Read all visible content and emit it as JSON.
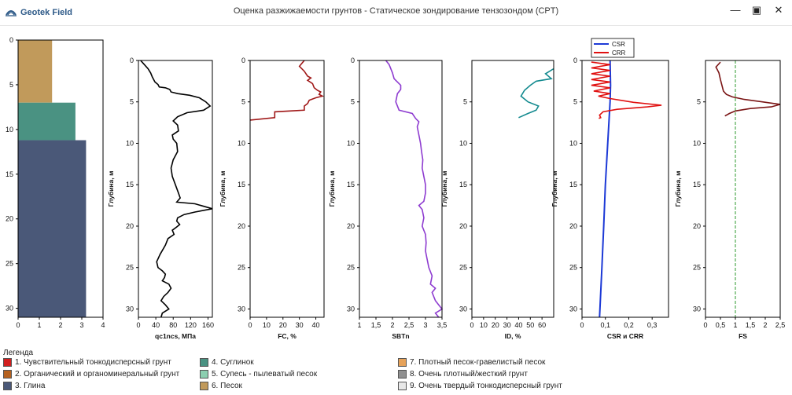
{
  "window": {
    "app_name": "Geotek Field",
    "title": "Оценка разжижаемости грунтов -  Статическое зондирование тензозондом (CPT)",
    "minimize_icon": "minimize-icon",
    "maximize_icon": "maximize-icon",
    "close_icon": "close-icon"
  },
  "colors": {
    "soil_3": "#c19a5b",
    "soil_4": "#4a9282",
    "soil_clay": "#4a5878",
    "qc": "#000000",
    "fc": "#a01818",
    "sbt": "#8e3cd0",
    "id": "#138a8f",
    "csr": "#1c39d6",
    "crr": "#e01010",
    "fs": "#7a1414",
    "fs_ref": "#2c9a2c"
  },
  "chart_data": [
    {
      "type": "bar",
      "name": "soil-column",
      "ylim": [
        0,
        31
      ],
      "xlim": [
        0,
        4
      ],
      "yticks": [
        0,
        5,
        10,
        15,
        20,
        25,
        30
      ],
      "xticks": [
        0,
        1,
        2,
        3,
        4
      ],
      "layers": [
        {
          "top": 0,
          "bottom": 7,
          "width": 1.6,
          "color": "#c19a5b"
        },
        {
          "top": 7,
          "bottom": 11.2,
          "width": 2.7,
          "color": "#4a9282"
        },
        {
          "top": 11.2,
          "bottom": 31,
          "width": 3.2,
          "color": "#4a5878"
        }
      ]
    },
    {
      "type": "line",
      "name": "qc1ncs",
      "xlabel": "qc1ncs, МПа",
      "ylabel": "Глубина, м",
      "xlim": [
        0,
        170
      ],
      "ylim": [
        0,
        31
      ],
      "xticks": [
        0,
        40,
        80,
        120,
        160
      ],
      "yticks": [
        0,
        5,
        10,
        15,
        20,
        25,
        30
      ],
      "series": [
        {
          "points": [
            [
              5,
              0
            ],
            [
              12,
              0.4
            ],
            [
              22,
              1
            ],
            [
              28,
              1.5
            ],
            [
              32,
              2
            ],
            [
              38,
              2.6
            ],
            [
              45,
              2.9
            ],
            [
              48,
              3.2
            ],
            [
              62,
              3.3
            ],
            [
              72,
              3.5
            ],
            [
              75,
              3.8
            ],
            [
              90,
              4
            ],
            [
              118,
              4.2
            ],
            [
              140,
              4.5
            ],
            [
              155,
              5
            ],
            [
              165,
              5.5
            ],
            [
              150,
              6
            ],
            [
              112,
              6.3
            ],
            [
              90,
              6.8
            ],
            [
              80,
              7.3
            ],
            [
              90,
              7.8
            ],
            [
              92,
              8.5
            ],
            [
              78,
              9
            ],
            [
              80,
              9.5
            ],
            [
              88,
              10
            ],
            [
              90,
              11
            ],
            [
              80,
              12
            ],
            [
              75,
              13
            ],
            [
              78,
              14
            ],
            [
              85,
              15
            ],
            [
              92,
              16
            ],
            [
              96,
              16.6
            ],
            [
              88,
              17.1
            ],
            [
              130,
              17.3
            ],
            [
              170,
              17.9
            ],
            [
              130,
              18.3
            ],
            [
              105,
              18.6
            ],
            [
              90,
              19
            ],
            [
              88,
              19.4
            ],
            [
              95,
              19.8
            ],
            [
              88,
              20.1
            ],
            [
              78,
              20.5
            ],
            [
              82,
              21
            ],
            [
              68,
              21.5
            ],
            [
              62,
              22.3
            ],
            [
              50,
              23.4
            ],
            [
              42,
              24.3
            ],
            [
              45,
              25
            ],
            [
              55,
              25.4
            ],
            [
              62,
              25.8
            ],
            [
              60,
              26.2
            ],
            [
              55,
              26.6
            ],
            [
              70,
              27
            ],
            [
              75,
              27.5
            ],
            [
              68,
              28
            ],
            [
              58,
              28.5
            ],
            [
              52,
              29
            ],
            [
              62,
              29.5
            ],
            [
              70,
              30
            ],
            [
              55,
              30.5
            ],
            [
              52,
              31
            ]
          ]
        }
      ]
    },
    {
      "type": "line",
      "name": "fc",
      "xlabel": "FC, %",
      "ylabel": "Глубина, м",
      "xlim": [
        0,
        45
      ],
      "ylim": [
        0,
        31
      ],
      "xticks": [
        0,
        10,
        20,
        30,
        40
      ],
      "yticks": [
        0,
        5,
        10,
        15,
        20,
        25,
        30
      ],
      "series": [
        {
          "points": [
            [
              33,
              0
            ],
            [
              30,
              0.7
            ],
            [
              33,
              1.3
            ],
            [
              35,
              1.9
            ],
            [
              37,
              2.1
            ],
            [
              35,
              2.4
            ],
            [
              38,
              2.8
            ],
            [
              39,
              3.3
            ],
            [
              41,
              3.6
            ],
            [
              43,
              3.8
            ],
            [
              42,
              4.1
            ],
            [
              44,
              4.3
            ],
            [
              40,
              4.5
            ],
            [
              36,
              4.8
            ],
            [
              35,
              5.2
            ],
            [
              33,
              5.5
            ],
            [
              33,
              6
            ],
            [
              15,
              6.2
            ],
            [
              15,
              6.9
            ],
            [
              0,
              7.2
            ]
          ]
        }
      ]
    },
    {
      "type": "line",
      "name": "sbtn",
      "xlabel": "SBTn",
      "ylabel": "Глубина, м",
      "xlim": [
        1,
        3.5
      ],
      "ylim": [
        0,
        31
      ],
      "xticks": [
        1,
        1.5,
        2,
        2.5,
        3,
        3.5
      ],
      "yticks": [
        0,
        5,
        10,
        15,
        20,
        25,
        30
      ],
      "series": [
        {
          "points": [
            [
              1.8,
              0
            ],
            [
              1.9,
              0.5
            ],
            [
              2.0,
              1.5
            ],
            [
              2.05,
              2.2
            ],
            [
              2.25,
              3
            ],
            [
              2.25,
              3.5
            ],
            [
              2.15,
              4
            ],
            [
              2.1,
              5
            ],
            [
              2.2,
              6
            ],
            [
              2.6,
              6.4
            ],
            [
              2.7,
              7
            ],
            [
              2.8,
              7.4
            ],
            [
              2.75,
              8
            ],
            [
              2.8,
              9
            ],
            [
              2.85,
              10
            ],
            [
              2.88,
              11
            ],
            [
              2.92,
              12
            ],
            [
              2.9,
              13
            ],
            [
              2.95,
              14
            ],
            [
              3.0,
              15
            ],
            [
              3.0,
              16
            ],
            [
              2.95,
              17
            ],
            [
              2.8,
              17.5
            ],
            [
              2.9,
              18
            ],
            [
              2.95,
              19
            ],
            [
              2.9,
              20
            ],
            [
              3.0,
              21
            ],
            [
              3.02,
              22
            ],
            [
              3.0,
              23
            ],
            [
              3.05,
              24
            ],
            [
              3.1,
              25
            ],
            [
              3.2,
              26
            ],
            [
              3.15,
              27
            ],
            [
              3.3,
              27.5
            ],
            [
              3.2,
              28
            ],
            [
              3.3,
              29
            ],
            [
              3.4,
              29.5
            ],
            [
              3.5,
              30
            ],
            [
              3.3,
              30.5
            ],
            [
              3.4,
              31
            ]
          ]
        }
      ]
    },
    {
      "type": "line",
      "name": "id",
      "xlabel": "ID, %",
      "ylabel": "Глубина, м",
      "xlim": [
        0,
        70
      ],
      "ylim": [
        0,
        31
      ],
      "xticks": [
        0,
        10,
        20,
        30,
        40,
        50,
        60
      ],
      "yticks": [
        5,
        10,
        15,
        20,
        25,
        30
      ],
      "series": [
        {
          "points": [
            [
              70,
              1
            ],
            [
              63,
              1.6
            ],
            [
              68,
              2.2
            ],
            [
              55,
              2.5
            ],
            [
              50,
              3
            ],
            [
              45,
              3.6
            ],
            [
              42,
              4.3
            ],
            [
              48,
              5
            ],
            [
              57,
              5.5
            ],
            [
              55,
              6
            ],
            [
              48,
              6.4
            ],
            [
              40,
              6.9
            ]
          ]
        }
      ]
    },
    {
      "type": "line",
      "name": "csr-crr",
      "xlabel": "CSR и CRR",
      "ylabel": "Глубина, м",
      "xlim": [
        0,
        0.37
      ],
      "ylim": [
        0,
        31
      ],
      "xticks": [
        0,
        0.1,
        0.2,
        0.3
      ],
      "yticks": [
        0,
        5,
        10,
        15,
        20,
        25,
        30
      ],
      "legend": {
        "position": "top",
        "entries": [
          "CSR",
          "CRR"
        ]
      },
      "series": [
        {
          "name": "CSR",
          "color": "#1c39d6",
          "points": [
            [
              0.12,
              0
            ],
            [
              0.122,
              3
            ],
            [
              0.12,
              5
            ],
            [
              0.11,
              10
            ],
            [
              0.1,
              15
            ],
            [
              0.093,
              20
            ],
            [
              0.085,
              25
            ],
            [
              0.08,
              28
            ],
            [
              0.075,
              31
            ]
          ]
        },
        {
          "name": "CRR",
          "color": "#e01010",
          "points": [
            [
              0.04,
              0.2
            ],
            [
              0.12,
              0.5
            ],
            [
              0.04,
              0.9
            ],
            [
              0.12,
              1.2
            ],
            [
              0.04,
              1.6
            ],
            [
              0.12,
              1.9
            ],
            [
              0.04,
              2.3
            ],
            [
              0.12,
              2.6
            ],
            [
              0.04,
              3
            ],
            [
              0.12,
              3.3
            ],
            [
              0.05,
              3.7
            ],
            [
              0.12,
              4
            ],
            [
              0.07,
              4.3
            ],
            [
              0.12,
              4.6
            ],
            [
              0.22,
              5.05
            ],
            [
              0.34,
              5.4
            ],
            [
              0.28,
              5.6
            ],
            [
              0.15,
              5.9
            ],
            [
              0.09,
              6.2
            ],
            [
              0.075,
              6.6
            ],
            [
              0.08,
              6.9
            ],
            [
              0.072,
              7.0
            ]
          ]
        }
      ]
    },
    {
      "type": "line",
      "name": "fs",
      "xlabel": "FS",
      "ylabel": "Глубина, м",
      "xlim": [
        0,
        2.5
      ],
      "ylim": [
        0,
        31
      ],
      "xticks": [
        0,
        0.5,
        1,
        1.5,
        2,
        2.5
      ],
      "yticks": [
        5,
        10,
        15,
        20,
        25,
        30
      ],
      "series": [
        {
          "points": [
            [
              0.5,
              0.2
            ],
            [
              0.35,
              0.8
            ],
            [
              0.45,
              1.5
            ],
            [
              0.5,
              2.3
            ],
            [
              0.55,
              3
            ],
            [
              0.6,
              3.7
            ],
            [
              0.7,
              4.1
            ],
            [
              0.9,
              4.4
            ],
            [
              1.3,
              4.7
            ],
            [
              1.9,
              5
            ],
            [
              2.5,
              5.3
            ],
            [
              2.2,
              5.6
            ],
            [
              1.5,
              5.8
            ],
            [
              1.0,
              6.1
            ],
            [
              0.8,
              6.4
            ],
            [
              0.65,
              6.7
            ]
          ]
        }
      ],
      "reference_line": 1.0
    }
  ],
  "legend": {
    "title": "Легенда",
    "items": [
      {
        "label": "1. Чувствительный тонкодисперсный грунт",
        "color": "#d11f1f"
      },
      {
        "label": "2. Органический и органоминеральный грунт",
        "color": "#b5611f"
      },
      {
        "label": "3. Глина",
        "color": "#4a5878"
      },
      {
        "label": "4. Суглинок",
        "color": "#4a9282"
      },
      {
        "label": "5. Супесь - пылеватый песок",
        "color": "#8ccfb0"
      },
      {
        "label": "6. Песок",
        "color": "#c19a5b"
      },
      {
        "label": "7. Плотный песок-гравелистый песок",
        "color": "#e6a25a"
      },
      {
        "label": "8. Очень плотный/жесткий грунт",
        "color": "#909090"
      },
      {
        "label": "9. Очень твердый тонкодисперсный грунт",
        "color": "#e8e8e8"
      }
    ]
  }
}
